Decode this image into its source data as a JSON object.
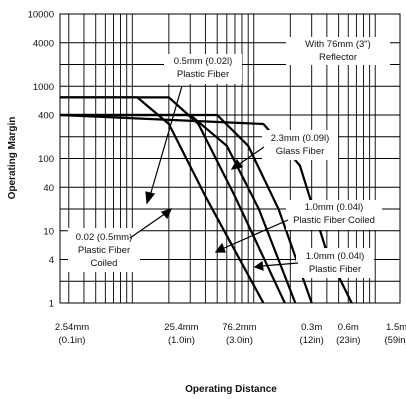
{
  "chart_data": {
    "type": "line",
    "title": "",
    "xlabel": "Operating Distance",
    "ylabel": "Operating Margin",
    "x_scale": "log",
    "y_scale": "log",
    "ylim": [
      1,
      10000
    ],
    "y_ticks": [
      "10000",
      "4000",
      "1000",
      "400",
      "100",
      "40",
      "10",
      "4",
      "1"
    ],
    "x_ticks": [
      {
        "line1": "2.54mm",
        "line2": "(0.1in)"
      },
      {
        "line1": "25.4mm",
        "line2": "(1.0in)"
      },
      {
        "line1": "76.2mm",
        "line2": "(3.0in)"
      },
      {
        "line1": "0.3m",
        "line2": "(12in)"
      },
      {
        "line1": "0.6m",
        "line2": "(23in)"
      },
      {
        "line1": "1.5m",
        "line2": "(59in)"
      }
    ],
    "annotation": [
      "With 76mm (3\")",
      "Reflector"
    ],
    "curve_labels": [
      [
        "0.5mm (0.02l)",
        "Plastic Fiber"
      ],
      [
        "2.3mm (0.09l)",
        "Glass Fiber"
      ],
      [
        "1.0mm (0.04l)",
        "Plastic Fiber Coiled"
      ],
      [
        "0.02 (0.5mm)",
        "Plastic Fiber",
        "Coiled"
      ],
      [
        "1.0mm (0.04l)",
        "Plastic Fiber"
      ]
    ],
    "series": [
      {
        "name": "0.02 (0.5mm) Plastic Fiber Coiled",
        "values": [
          [
            2.54,
            700
          ],
          [
            11,
            700
          ],
          [
            20,
            300
          ],
          [
            40,
            30
          ],
          [
            120,
            1
          ]
        ]
      },
      {
        "name": "0.5mm (0.02l) Plastic Fiber",
        "values": [
          [
            2.54,
            700
          ],
          [
            20,
            700
          ],
          [
            35,
            300
          ],
          [
            70,
            30
          ],
          [
            180,
            1
          ]
        ]
      },
      {
        "name": "1.0mm (0.04l) Plastic Fiber Coiled",
        "values": [
          [
            2.54,
            400
          ],
          [
            30,
            400
          ],
          [
            60,
            150
          ],
          [
            110,
            20
          ],
          [
            220,
            1
          ]
        ]
      },
      {
        "name": "1.0mm (0.04l) Plastic Fiber",
        "values": [
          [
            2.54,
            400
          ],
          [
            50,
            400
          ],
          [
            90,
            150
          ],
          [
            160,
            20
          ],
          [
            300,
            1
          ]
        ]
      },
      {
        "name": "2.3mm (0.09l) Glass Fiber",
        "values": [
          [
            2.54,
            400
          ],
          [
            120,
            300
          ],
          [
            240,
            80
          ],
          [
            400,
            5
          ],
          [
            640,
            1
          ]
        ]
      }
    ]
  }
}
